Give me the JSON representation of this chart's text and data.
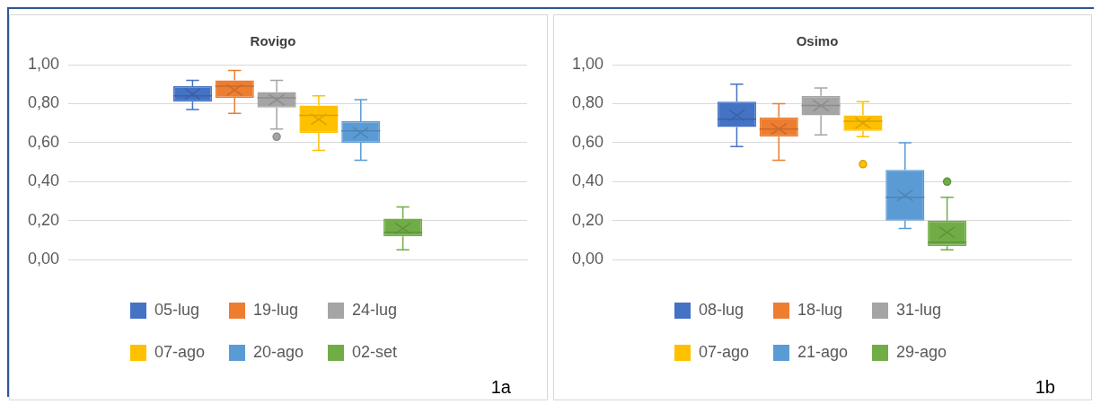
{
  "chart_data": [
    {
      "type": "box",
      "title": "Rovigo",
      "categories": [
        null
      ],
      "ylim": [
        0,
        1
      ],
      "yticks": [
        {
          "value": 0,
          "label": "0,00"
        },
        {
          "value": 0.2,
          "label": "0,20"
        },
        {
          "value": 0.4,
          "label": "0,40"
        },
        {
          "value": 0.6,
          "label": "0,60"
        },
        {
          "value": 0.8,
          "label": "0,80"
        },
        {
          "value": 1,
          "label": "1,00"
        }
      ],
      "grid": "y",
      "legend": "bottom",
      "annotations": [
        "1a"
      ],
      "series": [
        {
          "name": "05-lug",
          "color": "#4472c4",
          "boxes": [
            {
              "low": 0.77,
              "q1": 0.81,
              "median": 0.84,
              "q3": 0.89,
              "high": 0.92,
              "mean": 0.85
            }
          ]
        },
        {
          "name": "19-lug",
          "color": "#ed7d31",
          "boxes": [
            {
              "low": 0.75,
              "q1": 0.83,
              "median": 0.89,
              "q3": 0.92,
              "high": 0.97,
              "mean": 0.87
            }
          ]
        },
        {
          "name": "24-lug",
          "color": "#a5a5a5",
          "boxes": [
            {
              "low": 0.67,
              "q1": 0.78,
              "median": 0.83,
              "q3": 0.86,
              "high": 0.92,
              "mean": 0.82,
              "outliers": [
                0.63
              ]
            }
          ]
        },
        {
          "name": "07-ago",
          "color": "#ffc000",
          "boxes": [
            {
              "low": 0.56,
              "q1": 0.65,
              "median": 0.74,
              "q3": 0.79,
              "high": 0.84,
              "mean": 0.72
            }
          ]
        },
        {
          "name": "20-ago",
          "color": "#5b9bd5",
          "boxes": [
            {
              "low": 0.51,
              "q1": 0.6,
              "median": 0.66,
              "q3": 0.71,
              "high": 0.82,
              "mean": 0.65
            }
          ]
        },
        {
          "name": "02-set",
          "color": "#70ad47",
          "boxes": [
            {
              "low": 0.05,
              "q1": 0.12,
              "median": 0.14,
              "q3": 0.21,
              "high": 0.27,
              "mean": 0.16
            }
          ]
        }
      ]
    },
    {
      "type": "box",
      "title": "Osimo",
      "categories": [
        null
      ],
      "ylim": [
        0,
        1
      ],
      "yticks": [
        {
          "value": 0,
          "label": "0,00"
        },
        {
          "value": 0.2,
          "label": "0,20"
        },
        {
          "value": 0.4,
          "label": "0,40"
        },
        {
          "value": 0.6,
          "label": "0,60"
        },
        {
          "value": 0.8,
          "label": "0,80"
        },
        {
          "value": 1,
          "label": "1,00"
        }
      ],
      "grid": "y",
      "legend": "bottom",
      "annotations": [
        "1b"
      ],
      "series": [
        {
          "name": "08-lug",
          "color": "#4472c4",
          "boxes": [
            {
              "low": 0.58,
              "q1": 0.68,
              "median": 0.72,
              "q3": 0.81,
              "high": 0.9,
              "mean": 0.74
            }
          ]
        },
        {
          "name": "18-lug",
          "color": "#ed7d31",
          "boxes": [
            {
              "low": 0.51,
              "q1": 0.63,
              "median": 0.67,
              "q3": 0.73,
              "high": 0.8,
              "mean": 0.67
            }
          ]
        },
        {
          "name": "31-lug",
          "color": "#a5a5a5",
          "boxes": [
            {
              "low": 0.64,
              "q1": 0.74,
              "median": 0.79,
              "q3": 0.84,
              "high": 0.88,
              "mean": 0.79
            }
          ]
        },
        {
          "name": "07-ago",
          "color": "#ffc000",
          "boxes": [
            {
              "low": 0.63,
              "q1": 0.66,
              "median": 0.71,
              "q3": 0.74,
              "high": 0.81,
              "mean": 0.7,
              "outliers": [
                0.49
              ]
            }
          ]
        },
        {
          "name": "21-ago",
          "color": "#5b9bd5",
          "boxes": [
            {
              "low": 0.16,
              "q1": 0.2,
              "median": 0.32,
              "q3": 0.46,
              "high": 0.6,
              "mean": 0.33
            }
          ]
        },
        {
          "name": "29-ago",
          "color": "#70ad47",
          "boxes": [
            {
              "low": 0.05,
              "q1": 0.07,
              "median": 0.09,
              "q3": 0.2,
              "high": 0.32,
              "mean": 0.14,
              "outliers": [
                0.4
              ]
            }
          ]
        }
      ]
    }
  ]
}
